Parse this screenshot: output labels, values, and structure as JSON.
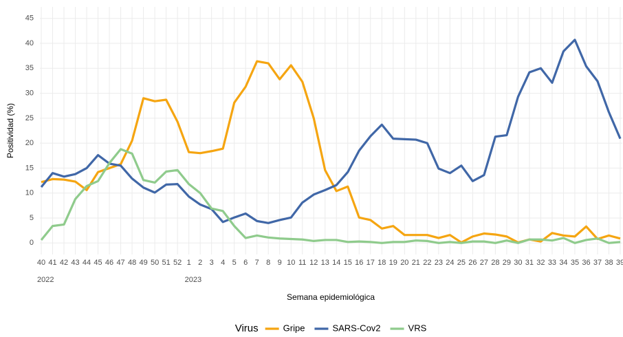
{
  "chart_data": {
    "type": "line",
    "y_label": "Positividad (%)",
    "x_label": "Semana epidemiológica",
    "legend_title": "Virus",
    "legend_position": "bottom",
    "grid": true,
    "category_groups": [
      {
        "label": "2022",
        "categories": [
          "40",
          "41",
          "42",
          "43",
          "44",
          "45",
          "46",
          "47",
          "48",
          "49",
          "50",
          "51",
          "52"
        ]
      },
      {
        "label": "2023",
        "categories": [
          "1",
          "2",
          "3",
          "4",
          "5",
          "6",
          "7",
          "8",
          "9",
          "10",
          "11",
          "12",
          "13",
          "14",
          "15",
          "16",
          "17",
          "18",
          "19",
          "20",
          "21",
          "22",
          "23",
          "24",
          "25",
          "26",
          "27",
          "28",
          "29",
          "30",
          "31",
          "32",
          "33",
          "34",
          "35",
          "36",
          "37",
          "38",
          "39"
        ]
      }
    ],
    "ylim": [
      -2.3,
      47.3
    ],
    "yticks": [
      0,
      5,
      10,
      15,
      20,
      25,
      30,
      35,
      40,
      45
    ],
    "series": [
      {
        "name": "Gripe",
        "color": "#f5a511",
        "values": [
          12.2,
          12.8,
          12.7,
          12.3,
          10.6,
          14.2,
          15.0,
          15.8,
          20.5,
          29.0,
          28.4,
          28.7,
          24.3,
          18.2,
          18.0,
          18.4,
          18.9,
          28.1,
          31.3,
          36.4,
          36.0,
          32.8,
          35.6,
          32.3,
          25.0,
          14.6,
          10.4,
          11.3,
          5.1,
          4.6,
          2.9,
          3.4,
          1.6,
          1.6,
          1.6,
          1.0,
          1.6,
          0.1,
          1.3,
          1.9,
          1.7,
          1.3,
          0.1,
          0.7,
          0.3,
          2.0,
          1.5,
          1.3,
          3.3,
          0.8,
          1.5,
          0.9
        ]
      },
      {
        "name": "SARS-Cov2",
        "color": "#4067a7",
        "values": [
          11.2,
          14.0,
          13.3,
          13.8,
          15.0,
          17.6,
          15.9,
          15.5,
          12.9,
          11.1,
          10.1,
          11.7,
          11.8,
          9.3,
          7.7,
          6.8,
          4.2,
          5.1,
          5.9,
          4.4,
          4.0,
          4.6,
          5.1,
          8.1,
          9.7,
          10.6,
          11.6,
          14.2,
          18.5,
          21.4,
          23.7,
          20.9,
          20.8,
          20.7,
          20.0,
          14.9,
          14.0,
          15.5,
          12.4,
          13.6,
          21.3,
          21.6,
          29.3,
          34.2,
          35.0,
          32.1,
          38.4,
          40.7,
          35.4,
          32.4,
          26.2,
          20.9
        ]
      },
      {
        "name": "VRS",
        "color": "#8fcb8c",
        "values": [
          0.6,
          3.4,
          3.7,
          8.8,
          11.4,
          12.4,
          16.0,
          18.8,
          17.9,
          12.6,
          12.1,
          14.3,
          14.6,
          11.8,
          10.0,
          6.9,
          6.4,
          3.4,
          1.0,
          1.5,
          1.1,
          0.9,
          0.8,
          0.7,
          0.4,
          0.6,
          0.6,
          0.2,
          0.3,
          0.2,
          0.0,
          0.2,
          0.2,
          0.5,
          0.4,
          0.0,
          0.2,
          0.0,
          0.3,
          0.3,
          0.0,
          0.5,
          0.0,
          0.7,
          0.7,
          0.5,
          1.0,
          0.0,
          0.6,
          0.9,
          0.0,
          0.2
        ]
      }
    ]
  }
}
